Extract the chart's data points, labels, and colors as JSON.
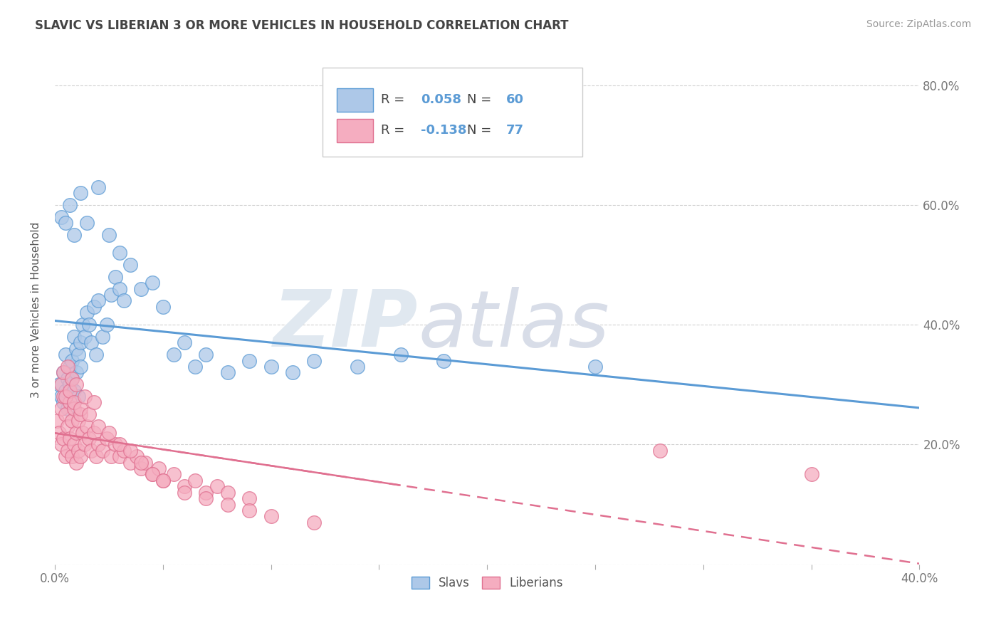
{
  "title": "SLAVIC VS LIBERIAN 3 OR MORE VEHICLES IN HOUSEHOLD CORRELATION CHART",
  "source": "Source: ZipAtlas.com",
  "ylabel": "3 or more Vehicles in Household",
  "xmin": 0.0,
  "xmax": 0.4,
  "ymin": 0.0,
  "ymax": 0.85,
  "slavs_R": 0.058,
  "slavs_N": 60,
  "liberians_R": -0.138,
  "liberians_N": 77,
  "slav_color": "#adc8e8",
  "liberian_color": "#f5adc0",
  "slav_line_color": "#5b9bd5",
  "liberian_line_color": "#e07090",
  "legend_label_slavs": "Slavs",
  "legend_label_liberians": "Liberians",
  "slavs_x": [
    0.002,
    0.003,
    0.004,
    0.004,
    0.005,
    0.005,
    0.006,
    0.006,
    0.007,
    0.007,
    0.008,
    0.008,
    0.009,
    0.009,
    0.01,
    0.01,
    0.011,
    0.011,
    0.012,
    0.012,
    0.013,
    0.014,
    0.015,
    0.016,
    0.017,
    0.018,
    0.019,
    0.02,
    0.022,
    0.024,
    0.026,
    0.028,
    0.03,
    0.032,
    0.035,
    0.04,
    0.045,
    0.05,
    0.055,
    0.06,
    0.065,
    0.07,
    0.08,
    0.09,
    0.1,
    0.11,
    0.12,
    0.14,
    0.16,
    0.18,
    0.003,
    0.005,
    0.007,
    0.009,
    0.012,
    0.015,
    0.02,
    0.025,
    0.03,
    0.25
  ],
  "slavs_y": [
    0.3,
    0.28,
    0.32,
    0.27,
    0.35,
    0.29,
    0.31,
    0.26,
    0.33,
    0.3,
    0.34,
    0.31,
    0.38,
    0.29,
    0.36,
    0.32,
    0.35,
    0.28,
    0.37,
    0.33,
    0.4,
    0.38,
    0.42,
    0.4,
    0.37,
    0.43,
    0.35,
    0.44,
    0.38,
    0.4,
    0.45,
    0.48,
    0.46,
    0.44,
    0.5,
    0.46,
    0.47,
    0.43,
    0.35,
    0.37,
    0.33,
    0.35,
    0.32,
    0.34,
    0.33,
    0.32,
    0.34,
    0.33,
    0.35,
    0.34,
    0.58,
    0.57,
    0.6,
    0.55,
    0.62,
    0.57,
    0.63,
    0.55,
    0.52,
    0.33
  ],
  "liberians_x": [
    0.001,
    0.002,
    0.003,
    0.003,
    0.004,
    0.004,
    0.005,
    0.005,
    0.006,
    0.006,
    0.007,
    0.007,
    0.008,
    0.008,
    0.009,
    0.009,
    0.01,
    0.01,
    0.011,
    0.011,
    0.012,
    0.012,
    0.013,
    0.014,
    0.015,
    0.016,
    0.017,
    0.018,
    0.019,
    0.02,
    0.022,
    0.024,
    0.026,
    0.028,
    0.03,
    0.032,
    0.035,
    0.038,
    0.04,
    0.042,
    0.045,
    0.048,
    0.05,
    0.055,
    0.06,
    0.065,
    0.07,
    0.075,
    0.08,
    0.09,
    0.003,
    0.004,
    0.005,
    0.006,
    0.007,
    0.008,
    0.009,
    0.01,
    0.012,
    0.014,
    0.016,
    0.018,
    0.02,
    0.025,
    0.03,
    0.035,
    0.04,
    0.045,
    0.05,
    0.06,
    0.07,
    0.08,
    0.09,
    0.1,
    0.12,
    0.28,
    0.35
  ],
  "liberians_y": [
    0.24,
    0.22,
    0.26,
    0.2,
    0.28,
    0.21,
    0.25,
    0.18,
    0.23,
    0.19,
    0.27,
    0.21,
    0.24,
    0.18,
    0.26,
    0.2,
    0.22,
    0.17,
    0.24,
    0.19,
    0.25,
    0.18,
    0.22,
    0.2,
    0.23,
    0.21,
    0.19,
    0.22,
    0.18,
    0.2,
    0.19,
    0.21,
    0.18,
    0.2,
    0.18,
    0.19,
    0.17,
    0.18,
    0.16,
    0.17,
    0.15,
    0.16,
    0.14,
    0.15,
    0.13,
    0.14,
    0.12,
    0.13,
    0.12,
    0.11,
    0.3,
    0.32,
    0.28,
    0.33,
    0.29,
    0.31,
    0.27,
    0.3,
    0.26,
    0.28,
    0.25,
    0.27,
    0.23,
    0.22,
    0.2,
    0.19,
    0.17,
    0.15,
    0.14,
    0.12,
    0.11,
    0.1,
    0.09,
    0.08,
    0.07,
    0.19,
    0.15
  ]
}
